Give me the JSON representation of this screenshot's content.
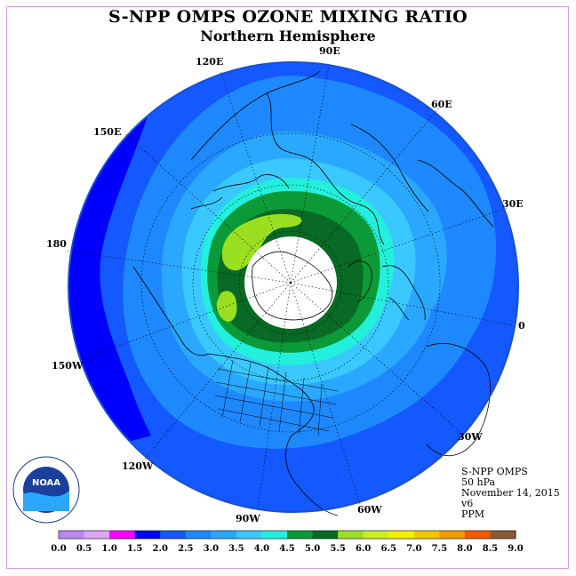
{
  "title": "S-NPP OMPS OZONE MIXING RATIO",
  "subtitle": "Northern Hemisphere",
  "longitude_labels": [
    "90E",
    "60E",
    "30E",
    "0",
    "30W",
    "60W",
    "90W",
    "120W",
    "150W",
    "180",
    "150E",
    "120E"
  ],
  "info": {
    "instrument": "S-NPP OMPS",
    "level": "50 hPa",
    "date": "November 14, 2015",
    "version": "v6",
    "units": "PPM"
  },
  "colorbar": {
    "ticks": [
      "0.0",
      "0.5",
      "1.0",
      "1.5",
      "2.0",
      "2.5",
      "3.0",
      "3.5",
      "4.0",
      "4.5",
      "5.0",
      "5.5",
      "6.0",
      "6.5",
      "7.0",
      "7.5",
      "8.0",
      "8.5",
      "9.0"
    ],
    "colors": [
      "#b98af0",
      "#dca6f2",
      "#ff00ff",
      "#0000ff",
      "#1458ff",
      "#1e88ff",
      "#2aa8ff",
      "#39c8ff",
      "#22f0dc",
      "#0c9a38",
      "#086a24",
      "#9ae020",
      "#c8f020",
      "#f0f000",
      "#f0c800",
      "#f09a00",
      "#f05a00",
      "#f00000",
      "#8a5a3a"
    ]
  },
  "map_colors": {
    "outer_2_0": "#0000ff",
    "band_2_5": "#1458ff",
    "band_3_0": "#1e88ff",
    "band_3_5": "#2aa8ff",
    "band_4_0": "#39c8ff",
    "band_4_5": "#22f0dc",
    "band_5_0": "#0c9a38",
    "band_5_5": "#086a24",
    "band_6_0": "#9ae020",
    "no_data": "#ffffff"
  },
  "logo": {
    "text": "NOAA"
  }
}
